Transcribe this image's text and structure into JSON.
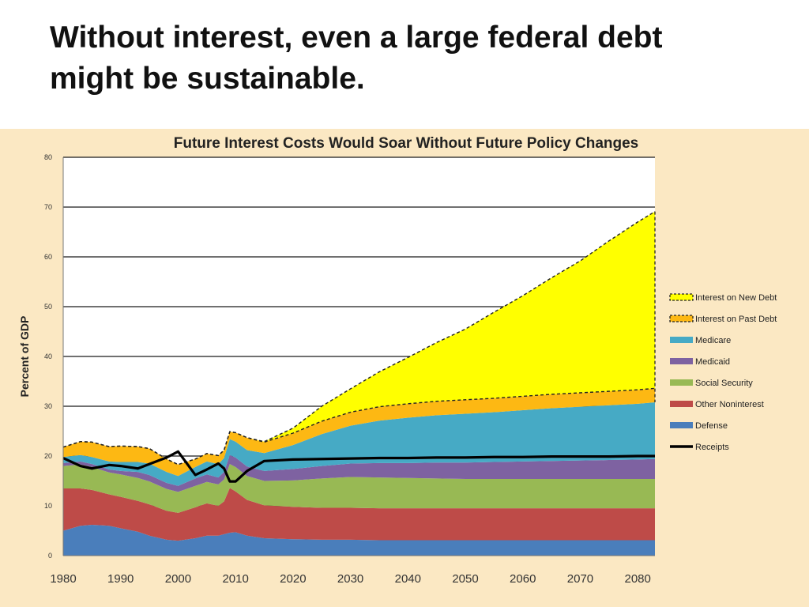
{
  "slide": {
    "title_line1": "Without interest, even a large federal debt",
    "title_line2": "might be sustainable."
  },
  "colors": {
    "figure_bg": "#fbe8c3",
    "defense": "#4a7ebb",
    "other_noninterest": "#be4b48",
    "social_security": "#98b954",
    "medicaid": "#7e62a1",
    "medicare": "#46aac5",
    "interest_past": "#fdb813",
    "interest_new": "#ffff00",
    "receipts": "#000000"
  },
  "chart_data": {
    "type": "area",
    "stacked": true,
    "title": "Future Interest Costs Would Soar Without Future Policy Changes",
    "ylabel": "Percent of GDP",
    "xlabel": "",
    "xlim": [
      1980,
      2083
    ],
    "ylim": [
      0,
      80
    ],
    "yticks": [
      "0",
      "10",
      "20",
      "30",
      "40",
      "50",
      "60",
      "70",
      "80"
    ],
    "xticks": [
      "1980",
      "1990",
      "2000",
      "2010",
      "2020",
      "2030",
      "2040",
      "2050",
      "2060",
      "2070",
      "2080"
    ],
    "grid": true,
    "legend_position": "right",
    "x": [
      1980,
      1983,
      1985,
      1988,
      1990,
      1993,
      1995,
      1998,
      2000,
      2003,
      2005,
      2007,
      2008,
      2009,
      2010,
      2012,
      2015,
      2020,
      2025,
      2030,
      2035,
      2040,
      2045,
      2050,
      2055,
      2060,
      2065,
      2070,
      2075,
      2080,
      2083
    ],
    "series": [
      {
        "name": "Defense",
        "key": "defense",
        "values": [
          5,
          6,
          6.2,
          6,
          5.5,
          4.8,
          4,
          3.2,
          3,
          3.5,
          4,
          4,
          4.3,
          4.6,
          4.7,
          4,
          3.5,
          3.3,
          3.2,
          3.2,
          3.1,
          3.1,
          3.1,
          3.1,
          3.1,
          3.1,
          3.1,
          3.1,
          3.1,
          3.1,
          3.1
        ]
      },
      {
        "name": "Other Noninterest",
        "key": "other_noninterest",
        "values": [
          8.5,
          7.5,
          7,
          6.3,
          6.3,
          6.2,
          6.3,
          5.8,
          5.6,
          6.2,
          6.5,
          6,
          6.6,
          9,
          8.2,
          7.2,
          6.6,
          6.5,
          6.4,
          6.4,
          6.4,
          6.4,
          6.4,
          6.4,
          6.4,
          6.4,
          6.4,
          6.4,
          6.4,
          6.4,
          6.4
        ]
      },
      {
        "name": "Social Security",
        "key": "social_security",
        "values": [
          4.5,
          4.8,
          4.6,
          4.4,
          4.5,
          4.6,
          4.6,
          4.4,
          4.2,
          4.3,
          4.3,
          4.3,
          4.4,
          4.8,
          4.9,
          4.8,
          4.9,
          5.3,
          5.9,
          6.2,
          6.2,
          6.1,
          6,
          5.9,
          5.9,
          5.9,
          5.9,
          5.9,
          5.9,
          5.9,
          5.9
        ]
      },
      {
        "name": "Medicaid",
        "key": "medicaid",
        "values": [
          0.6,
          0.6,
          0.6,
          0.6,
          0.7,
          1.2,
          1.3,
          1.2,
          1.2,
          1.5,
          1.5,
          1.4,
          1.5,
          1.8,
          1.9,
          1.9,
          2,
          2.3,
          2.5,
          2.7,
          2.9,
          3,
          3.2,
          3.3,
          3.4,
          3.5,
          3.6,
          3.7,
          3.8,
          3.9,
          4
        ]
      },
      {
        "name": "Medicare",
        "key": "medicare",
        "values": [
          1.2,
          1.3,
          1.4,
          1.6,
          1.8,
          2,
          2.3,
          2.2,
          2,
          2.3,
          2.6,
          2.7,
          2.8,
          3.2,
          3.2,
          3.3,
          3.6,
          4.8,
          6.4,
          7.6,
          8.5,
          9.1,
          9.5,
          9.8,
          10,
          10.3,
          10.6,
          10.8,
          11,
          11.2,
          11.4
        ]
      },
      {
        "name": "Interest on Past Debt",
        "key": "interest_past",
        "values": [
          2,
          2.7,
          3,
          3,
          3.2,
          3.1,
          3,
          2.6,
          2.3,
          1.6,
          1.6,
          1.7,
          1.6,
          1.5,
          1.8,
          2.5,
          2.2,
          2.4,
          2.6,
          2.7,
          2.8,
          2.8,
          2.8,
          2.8,
          2.8,
          2.8,
          2.8,
          2.8,
          2.8,
          2.8,
          2.8
        ]
      },
      {
        "name": "Interest on New Debt",
        "key": "interest_new",
        "values": [
          0,
          0,
          0,
          0,
          0,
          0,
          0,
          0,
          0,
          0,
          0,
          0,
          0,
          0,
          0,
          0,
          0.1,
          1,
          3,
          4.7,
          7,
          9.3,
          11.8,
          14.2,
          17.3,
          20.2,
          23.4,
          26.5,
          30.2,
          33.7,
          35.5
        ]
      }
    ],
    "lines": [
      {
        "name": "Receipts",
        "key": "receipts",
        "values": [
          19.6,
          18,
          17.5,
          18.2,
          18,
          17.5,
          18.4,
          19.7,
          20.9,
          16.2,
          17.3,
          18.5,
          17.5,
          14.9,
          14.9,
          17,
          19,
          19.3,
          19.4,
          19.5,
          19.6,
          19.6,
          19.7,
          19.7,
          19.8,
          19.8,
          19.9,
          19.9,
          19.9,
          20,
          20
        ]
      }
    ],
    "legend": [
      {
        "label": "Interest on New Debt",
        "key": "interest_new",
        "dashed": true
      },
      {
        "label": "Interest on Past Debt",
        "key": "interest_past",
        "dashed": true
      },
      {
        "label": "Medicare",
        "key": "medicare"
      },
      {
        "label": "Medicaid",
        "key": "medicaid"
      },
      {
        "label": "Social Security",
        "key": "social_security"
      },
      {
        "label": "Other Noninterest",
        "key": "other_noninterest"
      },
      {
        "label": "Defense",
        "key": "defense"
      },
      {
        "label": "Receipts",
        "key": "receipts",
        "line": true
      }
    ]
  }
}
